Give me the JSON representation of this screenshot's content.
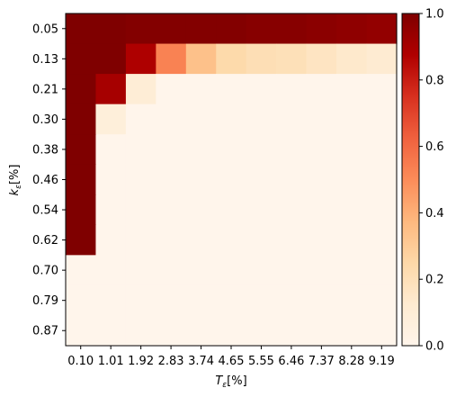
{
  "chart_data": {
    "type": "heatmap",
    "colormap": "OrRd",
    "xlabel": "T",
    "xlabel_sub": "ε",
    "xlabel_unit": "[%]",
    "ylabel": "k",
    "ylabel_sub": "ε",
    "ylabel_unit": "[%]",
    "x": [
      "0.10",
      "1.01",
      "1.92",
      "2.83",
      "3.74",
      "4.65",
      "5.55",
      "6.46",
      "7.37",
      "8.28",
      "9.19"
    ],
    "y": [
      "0.05",
      "0.13",
      "0.21",
      "0.30",
      "0.38",
      "0.46",
      "0.54",
      "0.62",
      "0.70",
      "0.79",
      "0.87"
    ],
    "values": [
      [
        1.0,
        1.0,
        0.99,
        0.99,
        0.99,
        0.99,
        0.98,
        0.98,
        0.97,
        0.96,
        0.95
      ],
      [
        1.0,
        1.0,
        0.88,
        0.53,
        0.34,
        0.24,
        0.21,
        0.2,
        0.17,
        0.14,
        0.12
      ],
      [
        1.0,
        0.9,
        0.1,
        0.0,
        0.0,
        0.0,
        0.0,
        0.0,
        0.0,
        0.0,
        0.0
      ],
      [
        1.0,
        0.08,
        0.0,
        0.0,
        0.0,
        0.0,
        0.0,
        0.0,
        0.0,
        0.0,
        0.0
      ],
      [
        1.0,
        0.0,
        0.0,
        0.0,
        0.0,
        0.0,
        0.0,
        0.0,
        0.0,
        0.0,
        0.0
      ],
      [
        1.0,
        0.0,
        0.0,
        0.0,
        0.0,
        0.0,
        0.0,
        0.0,
        0.0,
        0.0,
        0.0
      ],
      [
        1.0,
        0.0,
        0.0,
        0.0,
        0.0,
        0.0,
        0.0,
        0.0,
        0.0,
        0.0,
        0.0
      ],
      [
        1.0,
        0.0,
        0.0,
        0.0,
        0.0,
        0.0,
        0.0,
        0.0,
        0.0,
        0.0,
        0.0
      ],
      [
        0.0,
        0.0,
        0.0,
        0.0,
        0.0,
        0.0,
        0.0,
        0.0,
        0.0,
        0.0,
        0.0
      ],
      [
        0.0,
        0.0,
        0.0,
        0.0,
        0.0,
        0.0,
        0.0,
        0.0,
        0.0,
        0.0,
        0.0
      ],
      [
        0.0,
        0.0,
        0.0,
        0.0,
        0.0,
        0.0,
        0.0,
        0.0,
        0.0,
        0.0,
        0.0
      ]
    ],
    "colorbar": {
      "range": [
        0,
        1
      ],
      "ticks": [
        "0.0",
        "0.2",
        "0.4",
        "0.6",
        "0.8",
        "1.0"
      ]
    }
  }
}
